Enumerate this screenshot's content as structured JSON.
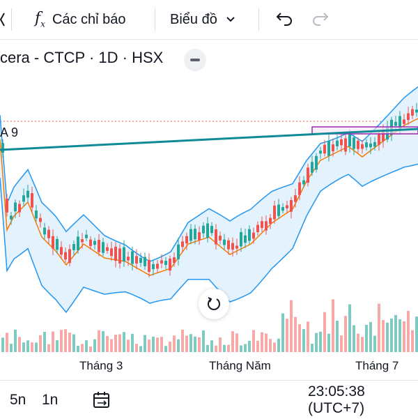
{
  "toolbar": {
    "indicators_label": "Các chỉ báo",
    "chart_type_label": "Biểu đồ"
  },
  "symbol": {
    "legend_text": "cera - CTCP · 1D · HSX"
  },
  "indicator": {
    "label": "A 9"
  },
  "xaxis": {
    "labels": [
      "Tháng 3",
      "Tháng Năm",
      "Tháng 7"
    ]
  },
  "bottombar": {
    "range_5n": "5n",
    "range_1n": "1n",
    "clock": "23:05:38 (UTC+7)"
  },
  "colors": {
    "up": "#26a69a",
    "down": "#ef5350",
    "band": "#2196f3",
    "band_fill": "#e3f2fd",
    "basis": "#f57c00",
    "trendline": "#0f8a96",
    "rect": "#9c27b0",
    "volume_up": "#7fcac1",
    "volume_down": "#f7a9a7"
  },
  "icons": [
    "chevron-left-icon",
    "function-icon",
    "chevron-down-icon",
    "undo-icon",
    "redo-icon",
    "minus-icon",
    "reset-icon",
    "calendar-range-icon"
  ]
}
